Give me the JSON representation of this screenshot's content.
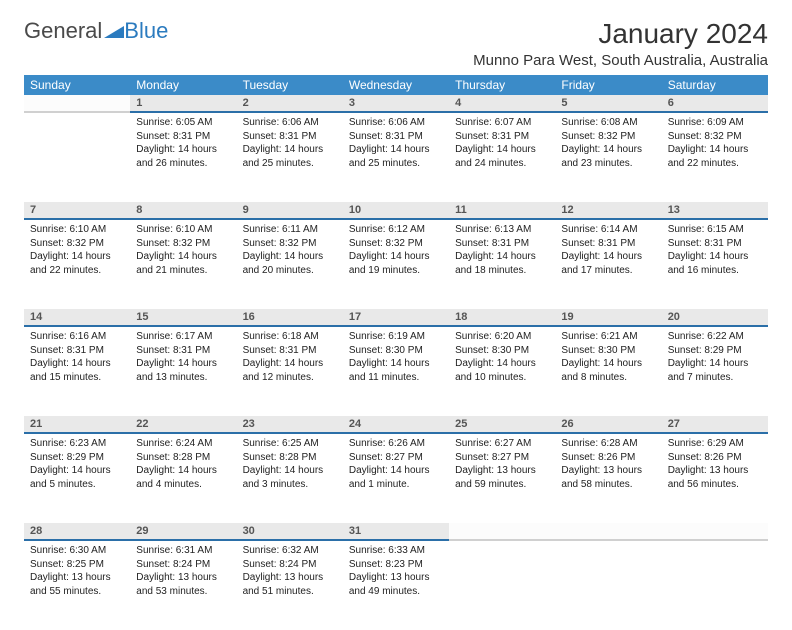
{
  "logo": {
    "text1": "General",
    "text2": "Blue"
  },
  "title": "January 2024",
  "location": "Munno Para West, South Australia, Australia",
  "colors": {
    "header_bg": "#3b8bc8",
    "daynum_bg": "#e9e9e9",
    "daynum_border": "#2b6fa8"
  },
  "weekdays": [
    "Sunday",
    "Monday",
    "Tuesday",
    "Wednesday",
    "Thursday",
    "Friday",
    "Saturday"
  ],
  "weeks": [
    [
      null,
      {
        "n": "1",
        "sr": "6:05 AM",
        "ss": "8:31 PM",
        "dl": "14 hours and 26 minutes."
      },
      {
        "n": "2",
        "sr": "6:06 AM",
        "ss": "8:31 PM",
        "dl": "14 hours and 25 minutes."
      },
      {
        "n": "3",
        "sr": "6:06 AM",
        "ss": "8:31 PM",
        "dl": "14 hours and 25 minutes."
      },
      {
        "n": "4",
        "sr": "6:07 AM",
        "ss": "8:31 PM",
        "dl": "14 hours and 24 minutes."
      },
      {
        "n": "5",
        "sr": "6:08 AM",
        "ss": "8:32 PM",
        "dl": "14 hours and 23 minutes."
      },
      {
        "n": "6",
        "sr": "6:09 AM",
        "ss": "8:32 PM",
        "dl": "14 hours and 22 minutes."
      }
    ],
    [
      {
        "n": "7",
        "sr": "6:10 AM",
        "ss": "8:32 PM",
        "dl": "14 hours and 22 minutes."
      },
      {
        "n": "8",
        "sr": "6:10 AM",
        "ss": "8:32 PM",
        "dl": "14 hours and 21 minutes."
      },
      {
        "n": "9",
        "sr": "6:11 AM",
        "ss": "8:32 PM",
        "dl": "14 hours and 20 minutes."
      },
      {
        "n": "10",
        "sr": "6:12 AM",
        "ss": "8:32 PM",
        "dl": "14 hours and 19 minutes."
      },
      {
        "n": "11",
        "sr": "6:13 AM",
        "ss": "8:31 PM",
        "dl": "14 hours and 18 minutes."
      },
      {
        "n": "12",
        "sr": "6:14 AM",
        "ss": "8:31 PM",
        "dl": "14 hours and 17 minutes."
      },
      {
        "n": "13",
        "sr": "6:15 AM",
        "ss": "8:31 PM",
        "dl": "14 hours and 16 minutes."
      }
    ],
    [
      {
        "n": "14",
        "sr": "6:16 AM",
        "ss": "8:31 PM",
        "dl": "14 hours and 15 minutes."
      },
      {
        "n": "15",
        "sr": "6:17 AM",
        "ss": "8:31 PM",
        "dl": "14 hours and 13 minutes."
      },
      {
        "n": "16",
        "sr": "6:18 AM",
        "ss": "8:31 PM",
        "dl": "14 hours and 12 minutes."
      },
      {
        "n": "17",
        "sr": "6:19 AM",
        "ss": "8:30 PM",
        "dl": "14 hours and 11 minutes."
      },
      {
        "n": "18",
        "sr": "6:20 AM",
        "ss": "8:30 PM",
        "dl": "14 hours and 10 minutes."
      },
      {
        "n": "19",
        "sr": "6:21 AM",
        "ss": "8:30 PM",
        "dl": "14 hours and 8 minutes."
      },
      {
        "n": "20",
        "sr": "6:22 AM",
        "ss": "8:29 PM",
        "dl": "14 hours and 7 minutes."
      }
    ],
    [
      {
        "n": "21",
        "sr": "6:23 AM",
        "ss": "8:29 PM",
        "dl": "14 hours and 5 minutes."
      },
      {
        "n": "22",
        "sr": "6:24 AM",
        "ss": "8:28 PM",
        "dl": "14 hours and 4 minutes."
      },
      {
        "n": "23",
        "sr": "6:25 AM",
        "ss": "8:28 PM",
        "dl": "14 hours and 3 minutes."
      },
      {
        "n": "24",
        "sr": "6:26 AM",
        "ss": "8:27 PM",
        "dl": "14 hours and 1 minute."
      },
      {
        "n": "25",
        "sr": "6:27 AM",
        "ss": "8:27 PM",
        "dl": "13 hours and 59 minutes."
      },
      {
        "n": "26",
        "sr": "6:28 AM",
        "ss": "8:26 PM",
        "dl": "13 hours and 58 minutes."
      },
      {
        "n": "27",
        "sr": "6:29 AM",
        "ss": "8:26 PM",
        "dl": "13 hours and 56 minutes."
      }
    ],
    [
      {
        "n": "28",
        "sr": "6:30 AM",
        "ss": "8:25 PM",
        "dl": "13 hours and 55 minutes."
      },
      {
        "n": "29",
        "sr": "6:31 AM",
        "ss": "8:24 PM",
        "dl": "13 hours and 53 minutes."
      },
      {
        "n": "30",
        "sr": "6:32 AM",
        "ss": "8:24 PM",
        "dl": "13 hours and 51 minutes."
      },
      {
        "n": "31",
        "sr": "6:33 AM",
        "ss": "8:23 PM",
        "dl": "13 hours and 49 minutes."
      },
      null,
      null,
      null
    ]
  ],
  "labels": {
    "sunrise": "Sunrise:",
    "sunset": "Sunset:",
    "daylight": "Daylight:"
  }
}
